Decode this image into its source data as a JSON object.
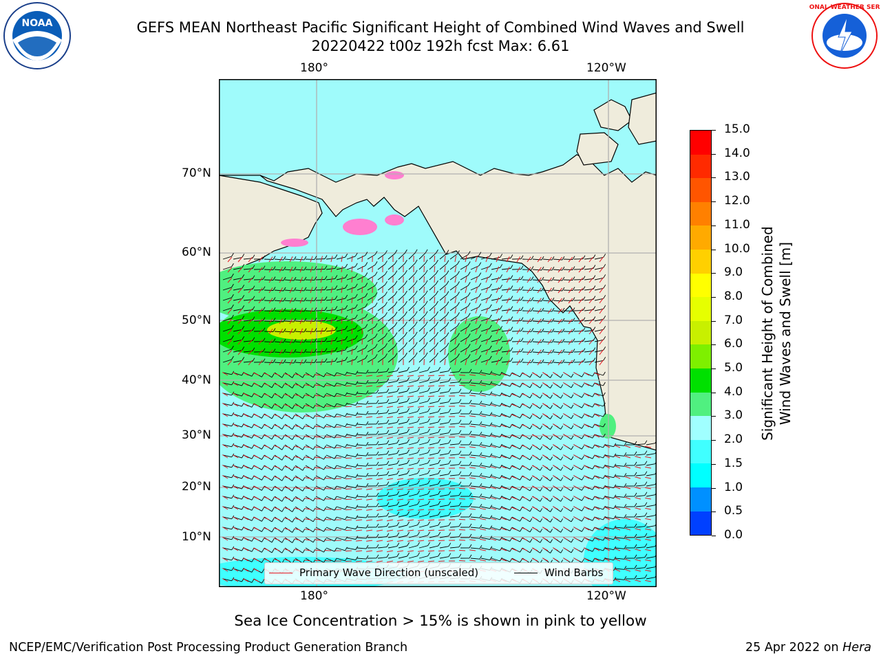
{
  "header": {
    "title_line1": "GEFS MEAN Northeast Pacific Significant Height of Combined Wind Waves and Swell",
    "title_line2": "20220422 t00z 192h fcst   Max: 6.61"
  },
  "logos": {
    "left": {
      "icon": "noaa-logo-icon",
      "text": "NOAA"
    },
    "right": {
      "icon": "nws-logo-icon",
      "text": "NATIONAL WEATHER SERVICE"
    }
  },
  "map": {
    "top_lon_labels": [
      "180°",
      "120°W"
    ],
    "bottom_lon_labels": [
      "180°",
      "120°W"
    ],
    "lat_labels": [
      "70°N",
      "60°N",
      "50°N",
      "40°N",
      "30°N",
      "20°N",
      "10°N"
    ],
    "legend": {
      "wave_label": "Primary Wave Direction (unscaled)",
      "wind_label": "Wind Barbs",
      "wave_color": "#e8141e",
      "wind_color": "#000000"
    },
    "colors": {
      "land": "#efecdc",
      "grid": "#b0b0b0",
      "ice_pink": "#ff7fd0"
    }
  },
  "colorbar": {
    "ticks": [
      "15.0",
      "14.0",
      "13.0",
      "12.0",
      "11.0",
      "10.0",
      "9.0",
      "8.0",
      "7.0",
      "6.0",
      "5.0",
      "4.0",
      "3.0",
      "2.0",
      "1.5",
      "1.0",
      "0.5",
      "0.0"
    ],
    "colors_top_to_bottom": [
      "#ff0000",
      "#ff2a00",
      "#ff5500",
      "#ff8000",
      "#ffaa00",
      "#ffd000",
      "#ffff00",
      "#e6ff00",
      "#c8f000",
      "#7ef000",
      "#00e000",
      "#50f080",
      "#a0ffff",
      "#40ffff",
      "#00ffff",
      "#0090ff",
      "#0040ff"
    ],
    "label_line1": "Significant Height of Combined",
    "label_line2": "Wind Waves and Swell [m]"
  },
  "footer": {
    "ice_note": "Sea Ice Concentration > 15% is shown in pink to yellow",
    "branch": "NCEP/EMC/Verification Post Processing Product Generation Branch",
    "date": "25 Apr 2022 on ",
    "machine": "Hera"
  }
}
